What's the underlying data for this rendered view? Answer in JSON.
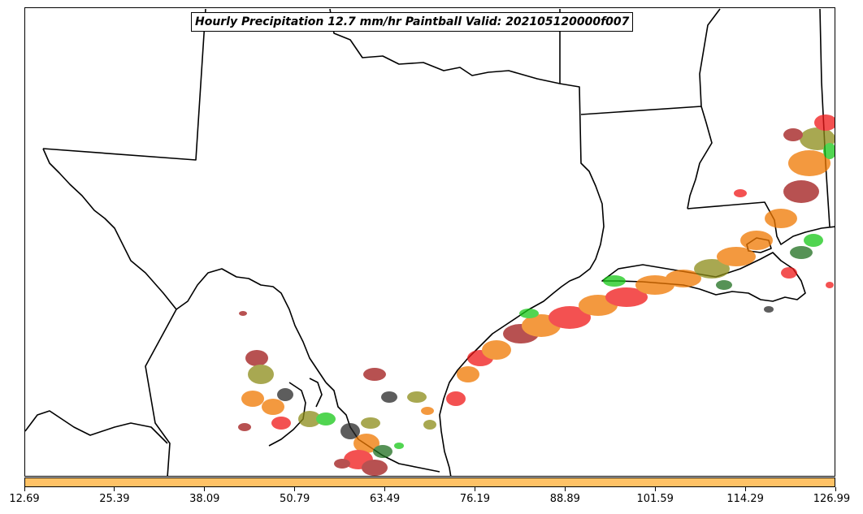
{
  "title": "Hourly Precipitation 12.7 mm/hr Paintball Valid: 202105120000f007",
  "colorbar": {
    "color": "#FFC266",
    "tick_labels": [
      "12.69",
      "25.39",
      "38.09",
      "50.79",
      "63.49",
      "76.19",
      "88.89",
      "101.59",
      "114.29",
      "126.99"
    ]
  },
  "map": {
    "region": "Texas and Gulf Coast",
    "paintball_colors": [
      "#F01818",
      "#F07800",
      "#A01818",
      "#18C818",
      "#8C8C18",
      "#1E6E1E",
      "#282828"
    ]
  }
}
